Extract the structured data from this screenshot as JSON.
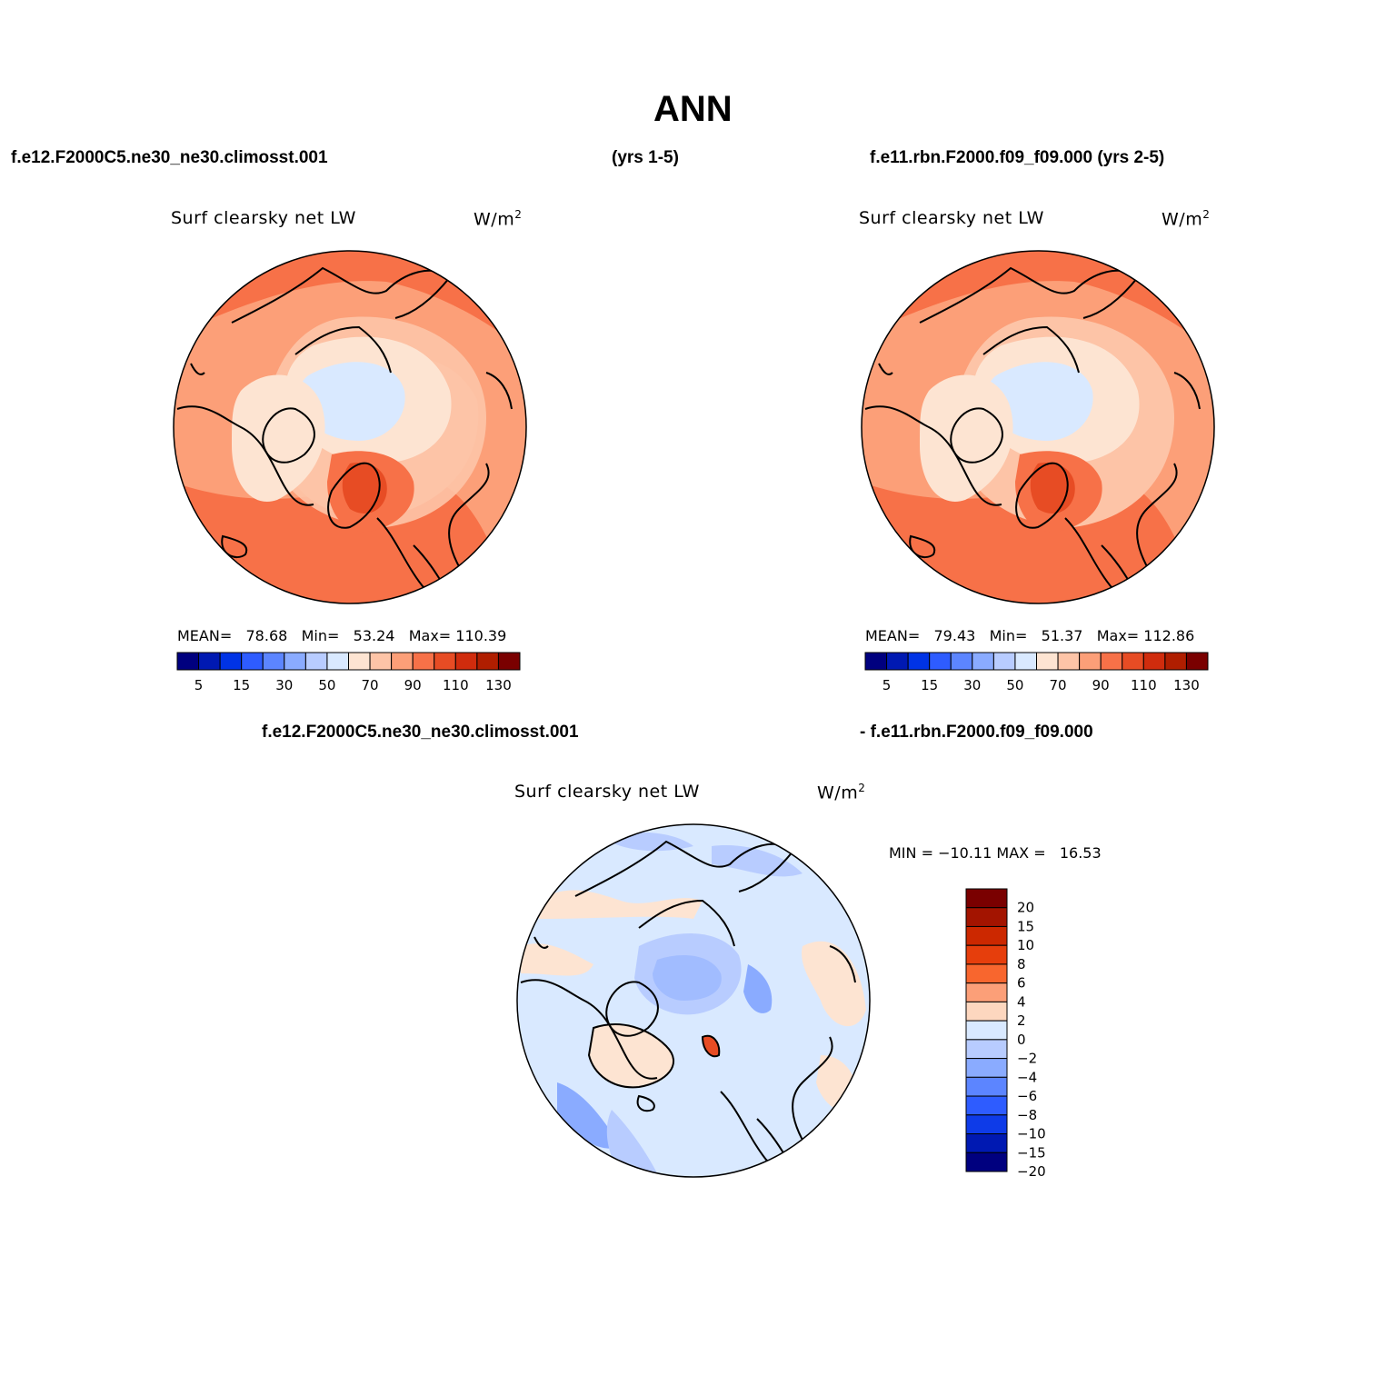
{
  "title": "ANN",
  "headers": {
    "case1": "f.e12.F2000C5.ne30_ne30.climosst.001",
    "case1_years": "(yrs 1-5)",
    "case2": "f.e11.rbn.F2000.f09_f09.000 (yrs 2-5)",
    "diff_case1": "f.e12.F2000C5.ne30_ne30.climosst.001",
    "diff_case2": "- f.e11.rbn.F2000.f09_f09.000"
  },
  "panels": [
    {
      "variable": "Surf clearsky net LW",
      "units_base": "W/m",
      "units_exp": "2",
      "stats": {
        "mean_label": "MEAN=",
        "mean": "78.68",
        "min_label": "Min=",
        "min": "53.24",
        "max_label": "Max=",
        "max": "110.39"
      }
    },
    {
      "variable": "Surf clearsky net LW",
      "units_base": "W/m",
      "units_exp": "2",
      "stats": {
        "mean_label": "MEAN=",
        "mean": "79.43",
        "min_label": "Min=",
        "min": "51.37",
        "max_label": "Max=",
        "max": "112.86"
      }
    },
    {
      "variable": "Surf clearsky net LW",
      "units_base": "W/m",
      "units_exp": "2",
      "stats": {
        "min_label": "MIN =",
        "min": "−10.11",
        "max_label": "MAX =",
        "max": "16.53"
      }
    }
  ],
  "colorbar_abs": {
    "colors": [
      "#00007f",
      "#0019b2",
      "#0033e5",
      "#2e5cff",
      "#5c85ff",
      "#8aabff",
      "#b8ccff",
      "#d9e9ff",
      "#fde4d2",
      "#fdc4a7",
      "#fc9f78",
      "#f77148",
      "#e74c24",
      "#d02c0d",
      "#b01e00",
      "#7a0000"
    ],
    "labels": [
      "5",
      "15",
      "30",
      "50",
      "70",
      "90",
      "110",
      "130"
    ]
  },
  "colorbar_diff": {
    "colors": [
      "#7a0000",
      "#a31400",
      "#cc2800",
      "#e63e0c",
      "#f8662e",
      "#fc9f78",
      "#fdd7bf",
      "#d9e9ff",
      "#b8ccff",
      "#8aabff",
      "#5c85ff",
      "#2e5cff",
      "#0e3be8",
      "#0019b2",
      "#00007f"
    ],
    "labels": [
      "20",
      "15",
      "10",
      "8",
      "6",
      "4",
      "2",
      "0",
      "−2",
      "−4",
      "−6",
      "−8",
      "−10",
      "−15",
      "−20"
    ]
  }
}
